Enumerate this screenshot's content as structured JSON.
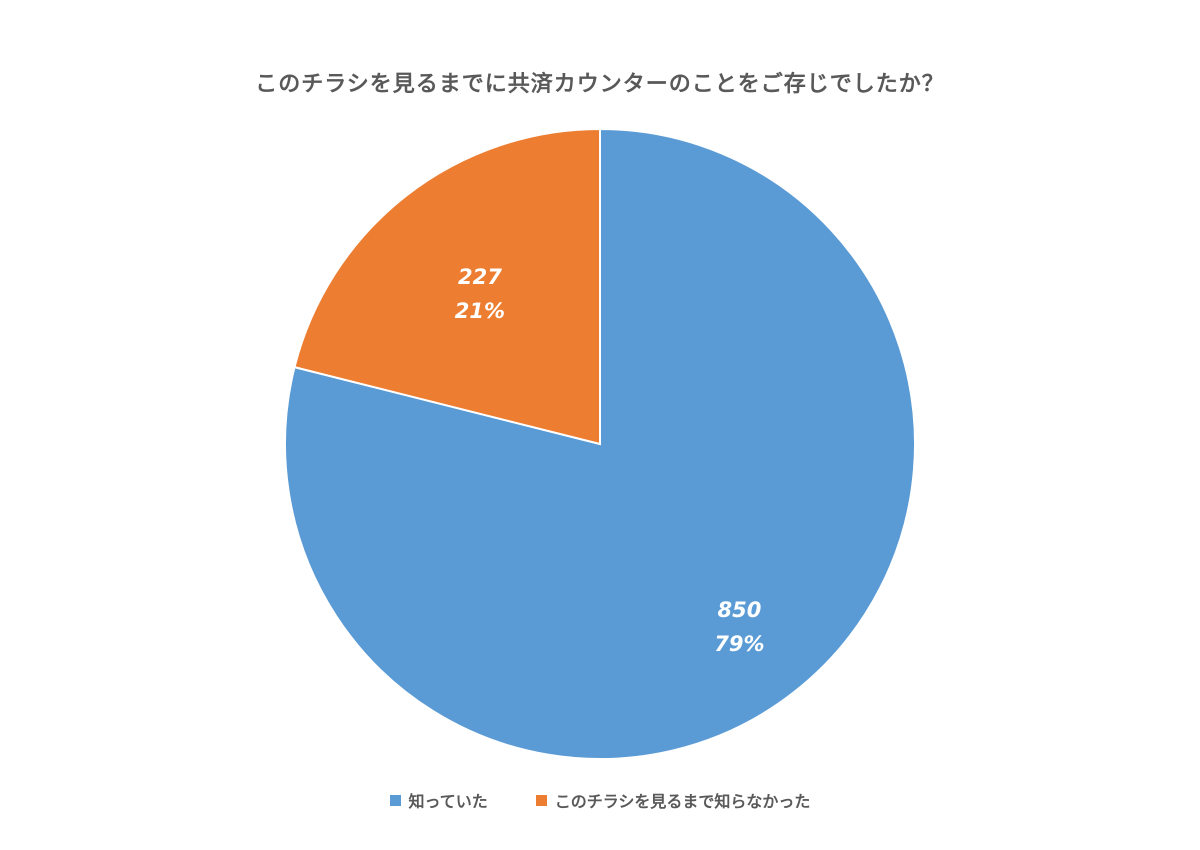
{
  "chart_data": {
    "type": "pie",
    "title": "このチラシを見るまでに共済カウンターのことをご存じでしたか？",
    "slices": [
      {
        "label": "知っていた",
        "value": 850,
        "percent": "79%",
        "color": "#5B9BD5"
      },
      {
        "label": "このチラシを見るまで知らなかった",
        "value": 227,
        "percent": "21%",
        "color": "#ED7D31"
      }
    ],
    "legend_position": "bottom",
    "start_angle": "12 o'clock",
    "direction": "clockwise"
  }
}
